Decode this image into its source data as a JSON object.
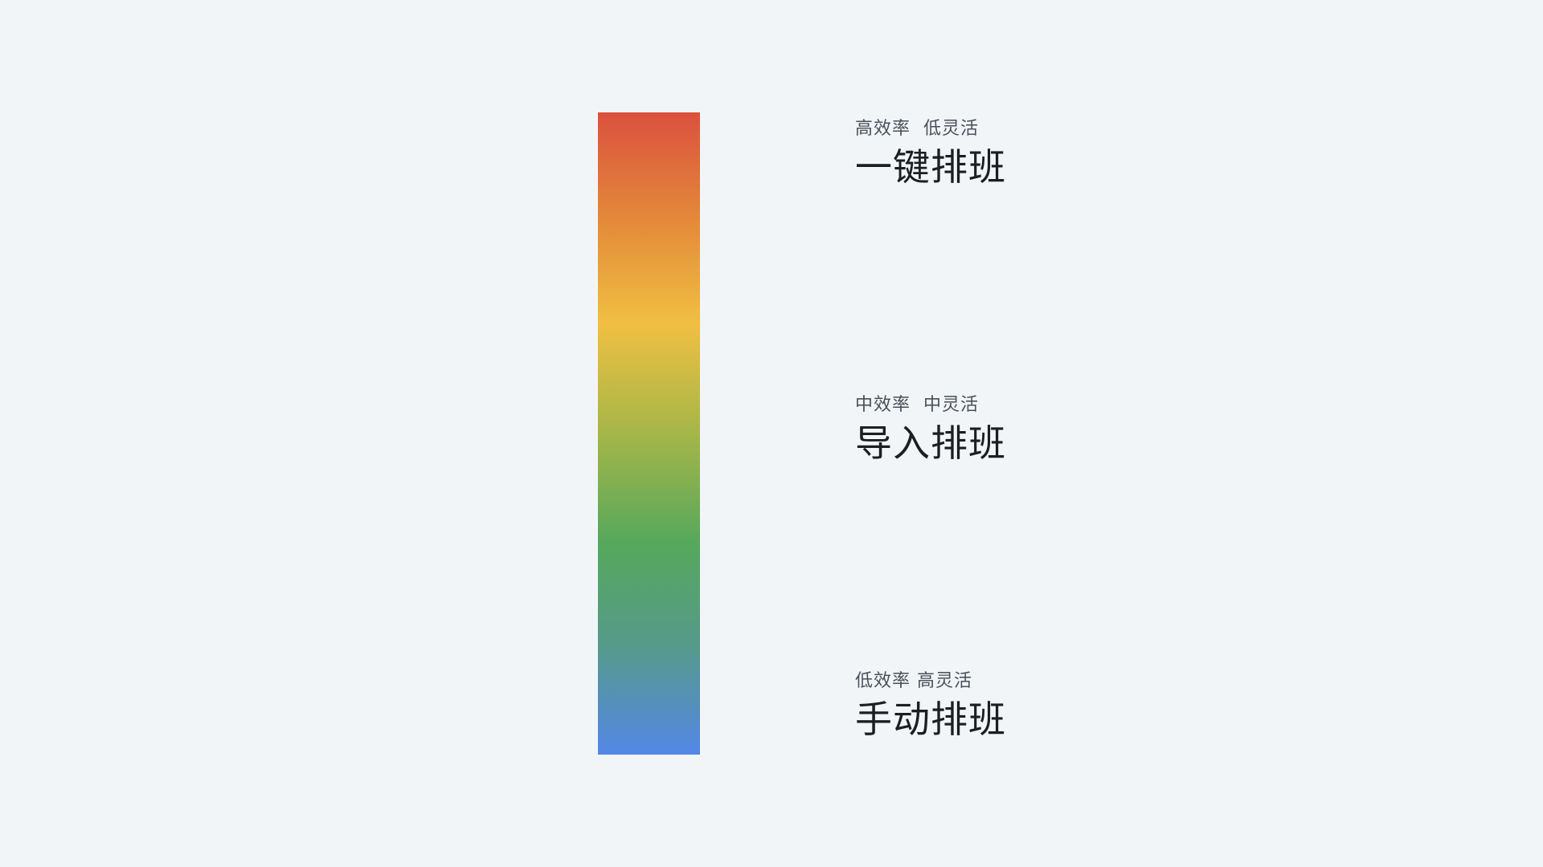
{
  "gradient": {
    "colors": [
      "#db513e",
      "#e38a3a",
      "#f0bf42",
      "#a5b648",
      "#56a85c",
      "#569a8a",
      "#5387e6"
    ]
  },
  "options": [
    {
      "qualities": "高效率  低灵活",
      "title": "一键排班"
    },
    {
      "qualities": "中效率  中灵活",
      "title": "导入排班"
    },
    {
      "qualities": "低效率 高灵活",
      "title": "手动排班"
    }
  ]
}
